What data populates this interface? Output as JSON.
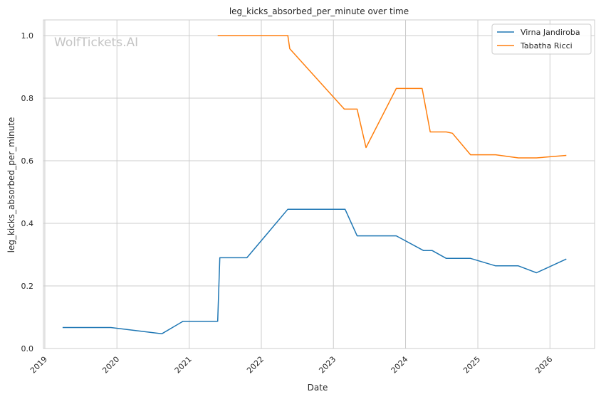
{
  "chart_data": {
    "type": "line",
    "title": "leg_kicks_absorbed_per_minute over time",
    "xlabel": "Date",
    "ylabel": "leg_kicks_absorbed_per_minute",
    "watermark": "WolfTickets.AI",
    "xlim": [
      "2018-12-25",
      "2026-08-15"
    ],
    "ylim": [
      0.0,
      1.05
    ],
    "x_ticks": [
      "2019",
      "2020",
      "2021",
      "2022",
      "2023",
      "2024",
      "2025",
      "2026"
    ],
    "y_ticks": [
      "0.0",
      "0.2",
      "0.4",
      "0.6",
      "0.8",
      "1.0"
    ],
    "y_tick_values": [
      0.0,
      0.2,
      0.4,
      0.6,
      0.8,
      1.0
    ],
    "grid": true,
    "legend_position": "top-right",
    "series": [
      {
        "name": "Virna Jandiroba",
        "color": "#1f77b4",
        "points": [
          {
            "x": "2019-04-01",
            "y": 0.067
          },
          {
            "x": "2019-12-01",
            "y": 0.067
          },
          {
            "x": "2020-08-15",
            "y": 0.047
          },
          {
            "x": "2020-12-01",
            "y": 0.087
          },
          {
            "x": "2021-05-25",
            "y": 0.087
          },
          {
            "x": "2021-06-05",
            "y": 0.29
          },
          {
            "x": "2021-10-20",
            "y": 0.29
          },
          {
            "x": "2022-05-15",
            "y": 0.445
          },
          {
            "x": "2023-03-01",
            "y": 0.445
          },
          {
            "x": "2023-05-01",
            "y": 0.36
          },
          {
            "x": "2023-11-15",
            "y": 0.36
          },
          {
            "x": "2024-04-01",
            "y": 0.313
          },
          {
            "x": "2024-05-15",
            "y": 0.313
          },
          {
            "x": "2024-07-25",
            "y": 0.288
          },
          {
            "x": "2024-11-25",
            "y": 0.288
          },
          {
            "x": "2025-04-01",
            "y": 0.264
          },
          {
            "x": "2025-07-25",
            "y": 0.264
          },
          {
            "x": "2025-10-25",
            "y": 0.242
          },
          {
            "x": "2026-03-25",
            "y": 0.286
          }
        ]
      },
      {
        "name": "Tabatha Ricci",
        "color": "#ff7f0e",
        "points": [
          {
            "x": "2021-05-25",
            "y": 1.0
          },
          {
            "x": "2022-05-15",
            "y": 1.0
          },
          {
            "x": "2022-05-25",
            "y": 0.958
          },
          {
            "x": "2023-02-25",
            "y": 0.765
          },
          {
            "x": "2023-05-01",
            "y": 0.765
          },
          {
            "x": "2023-06-15",
            "y": 0.642
          },
          {
            "x": "2023-11-15",
            "y": 0.831
          },
          {
            "x": "2024-03-25",
            "y": 0.831
          },
          {
            "x": "2024-05-05",
            "y": 0.692
          },
          {
            "x": "2024-07-25",
            "y": 0.692
          },
          {
            "x": "2024-08-25",
            "y": 0.688
          },
          {
            "x": "2024-11-25",
            "y": 0.619
          },
          {
            "x": "2025-04-01",
            "y": 0.619
          },
          {
            "x": "2025-07-25",
            "y": 0.609
          },
          {
            "x": "2025-10-25",
            "y": 0.609
          },
          {
            "x": "2026-03-25",
            "y": 0.617
          }
        ]
      }
    ]
  }
}
